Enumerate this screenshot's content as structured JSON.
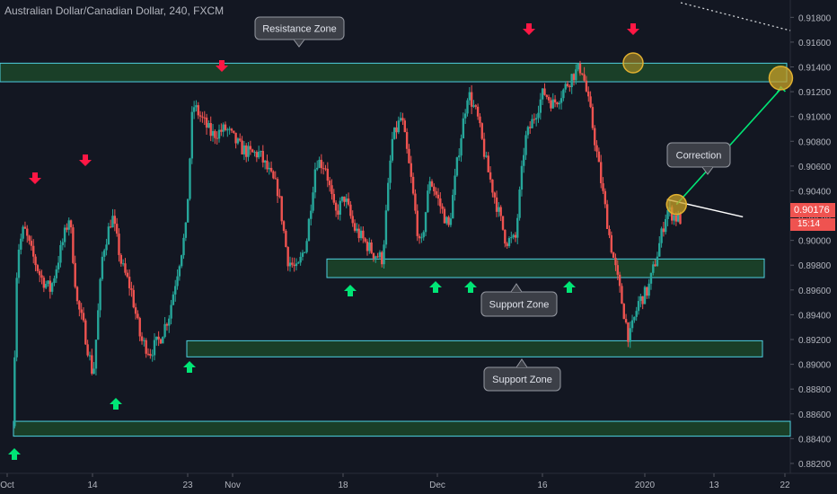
{
  "header": {
    "title": "Australian Dollar/Canadian Dollar, 240, FXCM"
  },
  "price_axis": {
    "ticks": [
      "0.91800",
      "0.91600",
      "0.91400",
      "0.91200",
      "0.91000",
      "0.90800",
      "0.90600",
      "0.90400",
      "0.90200",
      "0.90000",
      "0.89800",
      "0.89600",
      "0.89400",
      "0.89200",
      "0.89000",
      "0.88800",
      "0.88600",
      "0.88400",
      "0.88200"
    ],
    "last_price": "0.90176",
    "countdown": "15:14"
  },
  "time_axis": {
    "ticks": [
      "Oct",
      "14",
      "23",
      "Nov",
      "18",
      "Dec",
      "16",
      "2020",
      "13",
      "22"
    ]
  },
  "annotations": {
    "resistance_zone": "Resistance Zone",
    "support_zone_upper": "Support Zone",
    "support_zone_lower": "Support Zone",
    "correction": "Correction"
  },
  "colors": {
    "bull": "#26a69a",
    "bear": "#ef5350",
    "zone_fill": "#1e4d2b",
    "zone_border": "#4dd0e1",
    "arrow_up": "#00e676",
    "arrow_down": "#ff1744",
    "projection": "#00e676",
    "circle_fill": "#c9a227"
  },
  "chart_data": {
    "type": "candlestick",
    "symbol": "AUDCAD",
    "ylim": [
      0.8812,
      0.9194
    ],
    "x_ticks": [
      "Oct",
      "14",
      "23",
      "Nov",
      "18",
      "Dec",
      "16",
      "2020",
      "13",
      "22"
    ],
    "zones": [
      {
        "label": "Resistance Zone",
        "from": 0.9128,
        "to": 0.9143
      },
      {
        "label": "Support Zone",
        "from": 0.897,
        "to": 0.8985
      },
      {
        "label": "Support Zone",
        "from": 0.8906,
        "to": 0.8919
      },
      {
        "label": "",
        "from": 0.8842,
        "to": 0.8854
      }
    ],
    "close_path": [
      [
        0,
        0.885
      ],
      [
        0.5,
        0.899
      ],
      [
        1.2,
        0.901
      ],
      [
        2,
        0.899
      ],
      [
        3,
        0.897
      ],
      [
        4,
        0.896
      ],
      [
        5,
        0.899
      ],
      [
        6,
        0.902
      ],
      [
        6.8,
        0.895
      ],
      [
        7.5,
        0.893
      ],
      [
        8.5,
        0.889
      ],
      [
        9.5,
        0.899
      ],
      [
        10.5,
        0.902
      ],
      [
        11.5,
        0.898
      ],
      [
        12.5,
        0.896
      ],
      [
        13.5,
        0.892
      ],
      [
        14.5,
        0.891
      ],
      [
        15.5,
        0.892
      ],
      [
        16.5,
        0.894
      ],
      [
        17.5,
        0.898
      ],
      [
        18.3,
        0.901
      ],
      [
        19,
        0.911
      ],
      [
        19.8,
        0.91
      ],
      [
        21,
        0.9085
      ],
      [
        22.5,
        0.909
      ],
      [
        24,
        0.9075
      ],
      [
        25,
        0.907
      ],
      [
        26,
        0.907
      ],
      [
        27,
        0.9055
      ],
      [
        28,
        0.904
      ],
      [
        29,
        0.8985
      ],
      [
        30,
        0.8975
      ],
      [
        31,
        0.9
      ],
      [
        32,
        0.9065
      ],
      [
        33,
        0.906
      ],
      [
        34,
        0.902
      ],
      [
        35,
        0.9035
      ],
      [
        36,
        0.901
      ],
      [
        37,
        0.9
      ],
      [
        38,
        0.899
      ],
      [
        39,
        0.8985
      ],
      [
        40,
        0.908
      ],
      [
        41,
        0.91
      ],
      [
        42,
        0.905
      ],
      [
        43,
        0.899
      ],
      [
        44,
        0.905
      ],
      [
        45,
        0.903
      ],
      [
        46,
        0.901
      ],
      [
        47,
        0.907
      ],
      [
        48,
        0.912
      ],
      [
        49,
        0.91
      ],
      [
        50,
        0.906
      ],
      [
        51,
        0.903
      ],
      [
        52,
        0.9
      ],
      [
        53,
        0.9
      ],
      [
        54,
        0.908
      ],
      [
        55,
        0.91
      ],
      [
        56,
        0.912
      ],
      [
        57,
        0.911
      ],
      [
        58,
        0.912
      ],
      [
        59,
        0.9133
      ],
      [
        60,
        0.914
      ],
      [
        61,
        0.91
      ],
      [
        62,
        0.905
      ],
      [
        63,
        0.9
      ],
      [
        64,
        0.896
      ],
      [
        65,
        0.892
      ],
      [
        66,
        0.895
      ],
      [
        67,
        0.896
      ],
      [
        68,
        0.899
      ],
      [
        69,
        0.9025
      ],
      [
        70,
        0.9018
      ],
      [
        70.5,
        0.9017
      ]
    ],
    "points_of_interest": [
      {
        "label": "Correction",
        "x": 70,
        "y": 0.9029
      }
    ],
    "projection": {
      "from": [
        70,
        0.9029
      ],
      "to": [
        81,
        0.9131
      ]
    },
    "trendline": {
      "from": [
        69,
        0.9033
      ],
      "to": [
        77,
        0.9019
      ]
    },
    "arrows_up_x": [
      1.5,
      10.5,
      17,
      31,
      39,
      42.5,
      52,
      16
    ],
    "arrows_down_x": [
      3,
      7.2,
      19.5,
      47,
      56
    ]
  }
}
